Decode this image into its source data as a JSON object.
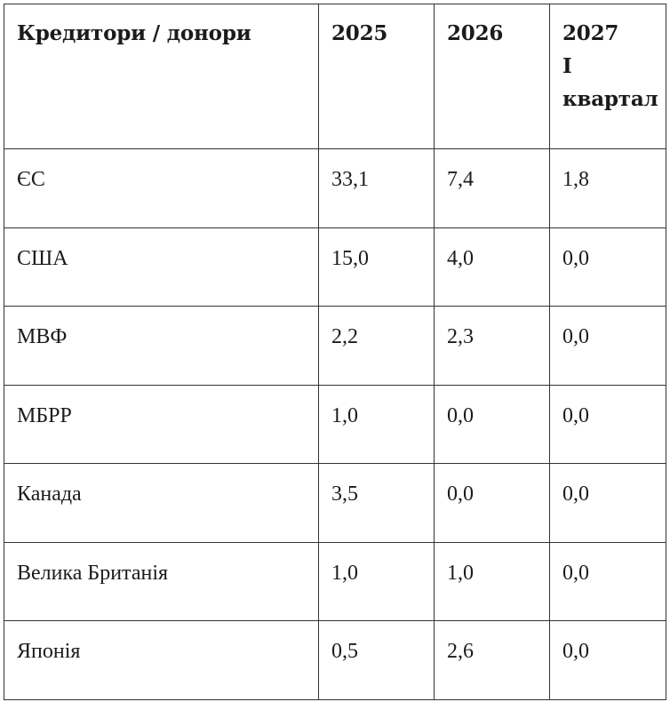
{
  "table": {
    "headers": [
      {
        "lines": [
          "Кредитори / донори"
        ]
      },
      {
        "lines": [
          "2025"
        ]
      },
      {
        "lines": [
          "2026"
        ]
      },
      {
        "lines": [
          "2027",
          "I",
          "квартал"
        ]
      }
    ],
    "rows": [
      [
        "ЄС",
        "33,1",
        "7,4",
        "1,8"
      ],
      [
        "США",
        "15,0",
        "4,0",
        "0,0"
      ],
      [
        "МВФ",
        "2,2",
        "2,3",
        "0,0"
      ],
      [
        "МБРР",
        "1,0",
        "0,0",
        "0,0"
      ],
      [
        "Канада",
        "3,5",
        "0,0",
        "0,0"
      ],
      [
        "Велика Британія",
        "1,0",
        "1,0",
        "0,0"
      ],
      [
        "Японія",
        "0,5",
        "2,6",
        "0,0"
      ]
    ]
  }
}
